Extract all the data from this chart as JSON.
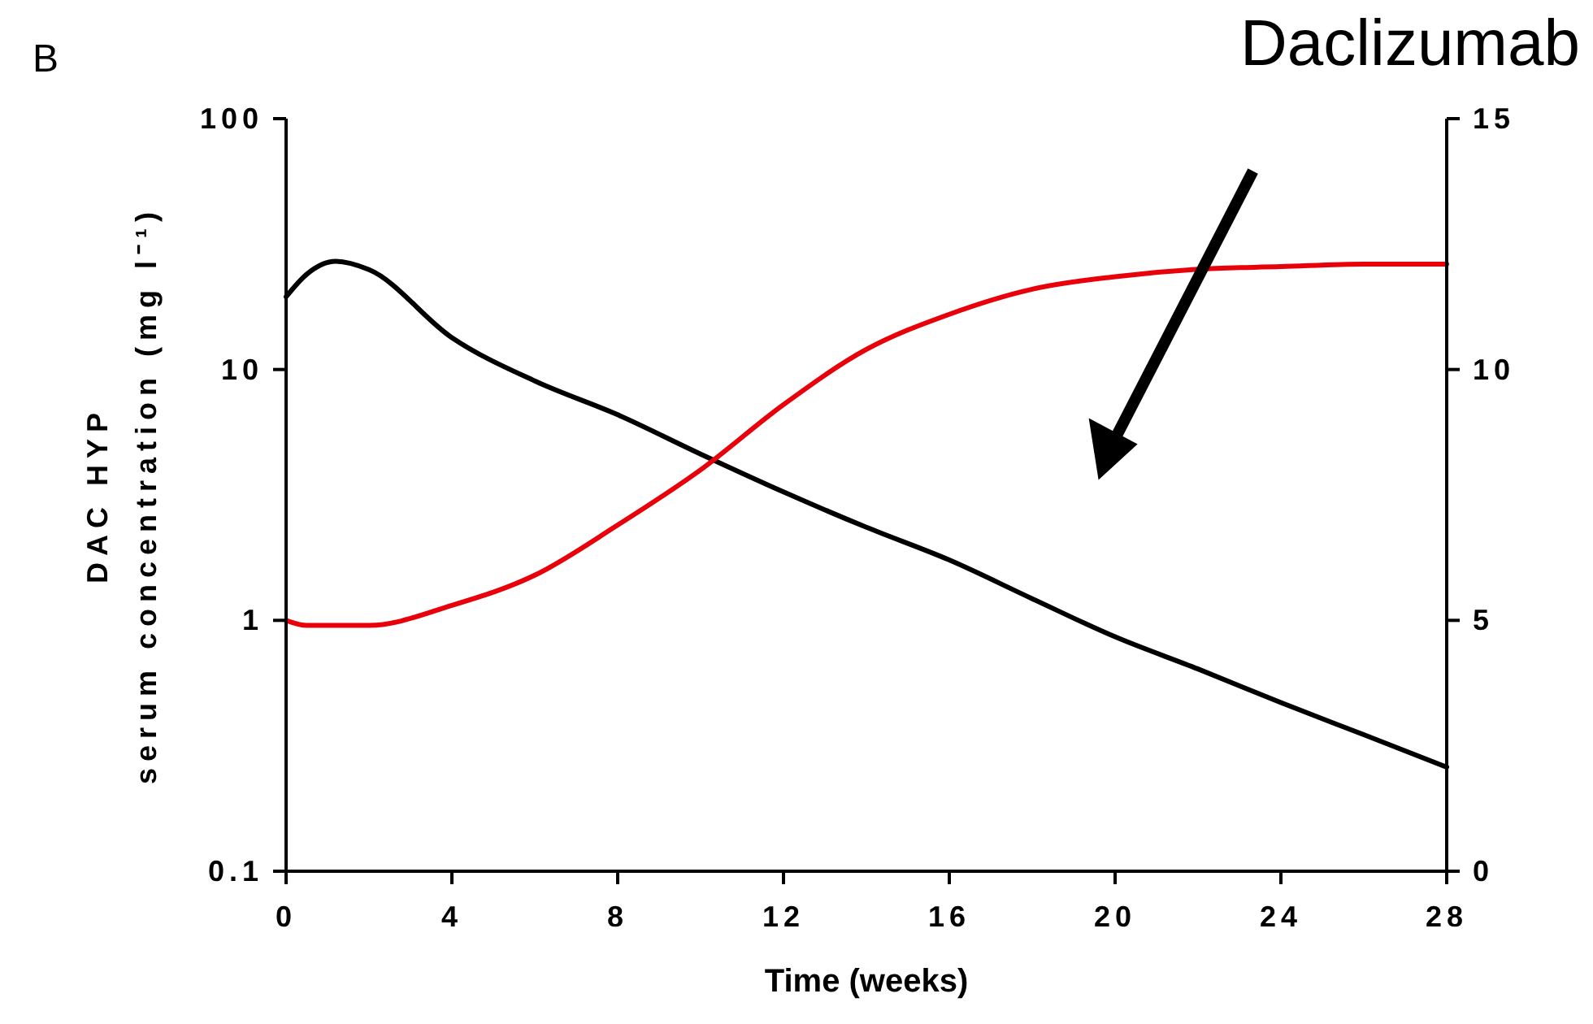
{
  "chart_data": {
    "type": "line",
    "xlabel": "Time (weeks)",
    "ylabel": "DAC HYP\nserum concentration  (mg l⁻¹)",
    "x": [
      0,
      0.5,
      1.2,
      2,
      4,
      6,
      8,
      10,
      12,
      14,
      16,
      18,
      20,
      22,
      24,
      26,
      28
    ],
    "series": [
      {
        "color": "#000000",
        "values": [
          19.5,
          24,
          27,
          25,
          13.4,
          9,
          6.6,
          4.6,
          3.25,
          2.35,
          1.74,
          1.22,
          0.86,
          0.64,
          0.47,
          0.35,
          0.26
        ]
      },
      {
        "color": "#e8000b",
        "axis": "y2",
        "values": [
          5.0,
          4.9,
          4.9,
          4.9,
          5.3,
          5.9,
          6.9,
          8.0,
          9.3,
          10.4,
          11.1,
          11.6,
          11.85,
          12.0,
          12.05,
          12.1,
          12.1
        ]
      }
    ],
    "xlim": [
      0,
      28
    ],
    "xticks": [
      0,
      4,
      8,
      12,
      16,
      20,
      24,
      28
    ],
    "ylim": [
      0.1,
      100
    ],
    "yticks": [
      0.1,
      1,
      10,
      100
    ],
    "log": "y",
    "y2lim": [
      0,
      15
    ],
    "y2ticks": [
      0,
      5,
      10,
      15
    ],
    "grid": false,
    "marker": "none",
    "line_style": "solid",
    "annotations": [
      "B",
      "Daclizumab"
    ]
  }
}
